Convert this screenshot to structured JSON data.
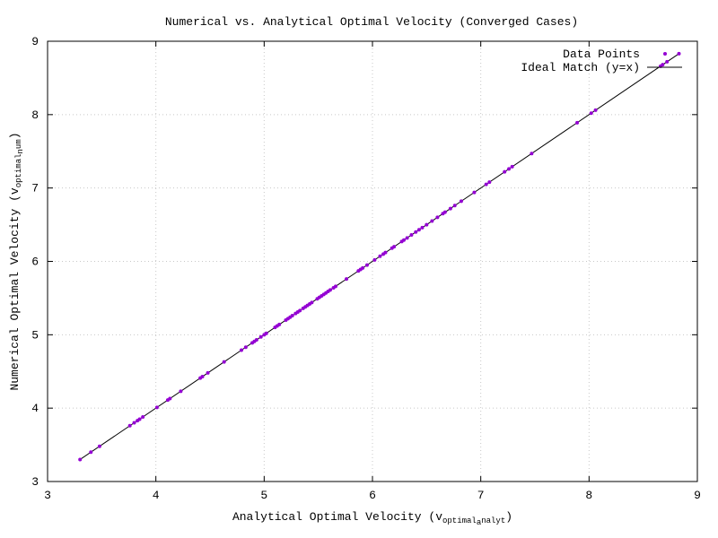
{
  "chart_data": {
    "type": "scatter",
    "title": "Numerical vs. Analytical Optimal Velocity (Converged Cases)",
    "xlabel": {
      "prefix": "Analytical Optimal Velocity (v",
      "sub": "optimal",
      "sub2": "a",
      "sub3": "nalyt",
      "suffix": ")"
    },
    "ylabel": {
      "prefix": "Numerical Optimal Velocity (v",
      "sub": "optimal",
      "sub2": "n",
      "sub3": "um",
      "suffix": ")"
    },
    "xlim": [
      3,
      9
    ],
    "ylim": [
      3,
      9
    ],
    "xticks": [
      "3",
      "4",
      "5",
      "6",
      "7",
      "8",
      "9"
    ],
    "yticks": [
      "3",
      "4",
      "5",
      "6",
      "7",
      "8",
      "9"
    ],
    "grid": true,
    "legend_position": "top-right",
    "series": [
      {
        "name": "Data Points",
        "kind": "points",
        "color": "#9400d3",
        "x": [
          3.3,
          3.4,
          3.48,
          3.76,
          3.8,
          3.83,
          3.85,
          3.88,
          4.01,
          4.11,
          4.13,
          4.23,
          4.41,
          4.43,
          4.48,
          4.63,
          4.79,
          4.83,
          4.89,
          4.91,
          4.93,
          4.97,
          5.0,
          5.02,
          5.1,
          5.12,
          5.14,
          5.2,
          5.22,
          5.24,
          5.26,
          5.29,
          5.31,
          5.33,
          5.36,
          5.38,
          5.4,
          5.42,
          5.44,
          5.49,
          5.51,
          5.53,
          5.55,
          5.57,
          5.59,
          5.61,
          5.64,
          5.66,
          5.76,
          5.87,
          5.89,
          5.91,
          5.95,
          6.02,
          6.07,
          6.1,
          6.12,
          6.18,
          6.2,
          6.27,
          6.29,
          6.32,
          6.36,
          6.4,
          6.43,
          6.46,
          6.5,
          6.55,
          6.6,
          6.65,
          6.67,
          6.72,
          6.76,
          6.82,
          6.94,
          7.05,
          7.08,
          7.22,
          7.26,
          7.29,
          7.47,
          7.89,
          8.02,
          8.06,
          8.66,
          8.68,
          8.72,
          8.83
        ],
        "y": [
          3.3,
          3.4,
          3.48,
          3.76,
          3.8,
          3.83,
          3.85,
          3.88,
          4.01,
          4.11,
          4.13,
          4.23,
          4.41,
          4.43,
          4.48,
          4.63,
          4.79,
          4.83,
          4.89,
          4.91,
          4.93,
          4.97,
          5.0,
          5.02,
          5.1,
          5.12,
          5.14,
          5.2,
          5.22,
          5.24,
          5.26,
          5.29,
          5.31,
          5.33,
          5.36,
          5.38,
          5.4,
          5.42,
          5.44,
          5.49,
          5.51,
          5.53,
          5.55,
          5.57,
          5.59,
          5.61,
          5.64,
          5.66,
          5.76,
          5.87,
          5.89,
          5.91,
          5.95,
          6.02,
          6.07,
          6.1,
          6.12,
          6.18,
          6.2,
          6.27,
          6.29,
          6.32,
          6.36,
          6.4,
          6.43,
          6.46,
          6.5,
          6.55,
          6.6,
          6.65,
          6.67,
          6.72,
          6.76,
          6.82,
          6.94,
          7.05,
          7.08,
          7.22,
          7.26,
          7.29,
          7.47,
          7.89,
          8.02,
          8.06,
          8.66,
          8.68,
          8.72,
          8.83
        ]
      },
      {
        "name": "Ideal Match (y=x)",
        "kind": "line",
        "color": "#000000",
        "x": [
          3.3,
          8.84
        ],
        "y": [
          3.3,
          8.84
        ]
      }
    ]
  }
}
